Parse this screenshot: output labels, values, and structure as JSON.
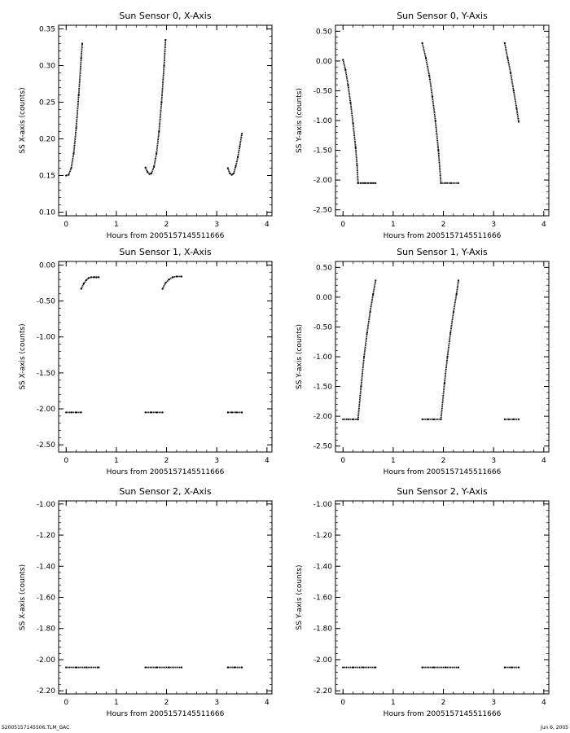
{
  "footer": {
    "left": "S2005157145506.TLM_GAC",
    "right": "Jun  6, 2005"
  },
  "chart_data": [
    {
      "type": "scatter",
      "title": "Sun Sensor 0, X-Axis",
      "xlabel": "Hours from 2005157145511666",
      "ylabel": "SS X-axis (counts)",
      "xlim": [
        -0.15,
        4.1
      ],
      "ylim": [
        0.095,
        0.355
      ],
      "xticks": [
        0,
        1,
        2,
        3,
        4
      ],
      "xtick_labels": [
        "0",
        "1",
        "2",
        "3",
        "4"
      ],
      "yticks": [
        0.1,
        0.15,
        0.2,
        0.25,
        0.3,
        0.35
      ],
      "ytick_labels": [
        "0.10",
        "0.15",
        "0.20",
        "0.25",
        "0.30",
        "0.35"
      ],
      "series": [
        {
          "x": [
            0.0,
            0.05,
            0.1,
            0.15,
            0.2,
            0.25,
            0.3,
            0.32
          ],
          "y": [
            0.15,
            0.151,
            0.16,
            0.18,
            0.215,
            0.26,
            0.31,
            0.33
          ]
        },
        {
          "x": [
            1.58,
            1.62,
            1.66,
            1.7,
            1.75,
            1.8,
            1.85,
            1.9,
            1.95,
            1.98
          ],
          "y": [
            0.161,
            0.155,
            0.152,
            0.153,
            0.162,
            0.18,
            0.21,
            0.25,
            0.3,
            0.335
          ]
        },
        {
          "x": [
            3.22,
            3.26,
            3.3,
            3.34,
            3.38,
            3.42,
            3.46,
            3.5
          ],
          "y": [
            0.16,
            0.153,
            0.151,
            0.153,
            0.163,
            0.175,
            0.19,
            0.207
          ]
        }
      ]
    },
    {
      "type": "scatter",
      "title": "Sun Sensor 0, Y-Axis",
      "xlabel": "Hours from 2005157145511666",
      "ylabel": "SS Y-axis (counts)",
      "xlim": [
        -0.15,
        4.1
      ],
      "ylim": [
        -2.6,
        0.6
      ],
      "xticks": [
        0,
        1,
        2,
        3,
        4
      ],
      "xtick_labels": [
        "0",
        "1",
        "2",
        "3",
        "4"
      ],
      "yticks": [
        -2.5,
        -2.0,
        -1.5,
        -1.0,
        -0.5,
        0.0,
        0.5
      ],
      "ytick_labels": [
        "-2.50",
        "-2.00",
        "-1.50",
        "-1.00",
        "-0.50",
        "0.00",
        "0.50"
      ],
      "series": [
        {
          "x": [
            0.0,
            0.05,
            0.1,
            0.15,
            0.2,
            0.25,
            0.28,
            0.3
          ],
          "y": [
            0.02,
            -0.15,
            -0.4,
            -0.7,
            -1.05,
            -1.45,
            -1.75,
            -2.05
          ]
        },
        {
          "x": [
            0.3,
            0.35,
            0.4,
            0.45,
            0.5,
            0.55,
            0.6,
            0.65
          ],
          "y": [
            -2.05,
            -2.05,
            -2.05,
            -2.05,
            -2.05,
            -2.05,
            -2.05,
            -2.05
          ]
        },
        {
          "x": [
            1.58,
            1.65,
            1.72,
            1.78,
            1.84,
            1.9,
            1.95
          ],
          "y": [
            0.3,
            0.05,
            -0.25,
            -0.6,
            -1.0,
            -1.5,
            -2.05
          ]
        },
        {
          "x": [
            1.95,
            2.05,
            2.15,
            2.3
          ],
          "y": [
            -2.05,
            -2.05,
            -2.05,
            -2.05
          ]
        },
        {
          "x": [
            3.22,
            3.28,
            3.34,
            3.4,
            3.46,
            3.5
          ],
          "y": [
            0.3,
            0.05,
            -0.2,
            -0.5,
            -0.8,
            -1.02
          ]
        }
      ]
    },
    {
      "type": "scatter",
      "title": "Sun Sensor 1, X-Axis",
      "xlabel": "Hours from 2005157145511666",
      "ylabel": "SS X-axis (counts)",
      "xlim": [
        -0.15,
        4.1
      ],
      "ylim": [
        -2.6,
        0.05
      ],
      "xticks": [
        0,
        1,
        2,
        3,
        4
      ],
      "xtick_labels": [
        "0",
        "1",
        "2",
        "3",
        "4"
      ],
      "yticks": [
        -2.5,
        -2.0,
        -1.5,
        -1.0,
        -0.5,
        0.0
      ],
      "ytick_labels": [
        "-2.50",
        "-2.00",
        "-1.50",
        "-1.00",
        "-0.50",
        "0.00"
      ],
      "series": [
        {
          "x": [
            0.0,
            0.1,
            0.2,
            0.3
          ],
          "y": [
            -2.05,
            -2.05,
            -2.05,
            -2.05
          ]
        },
        {
          "x": [
            0.3,
            0.35,
            0.4,
            0.45,
            0.5,
            0.55,
            0.6,
            0.65
          ],
          "y": [
            -0.33,
            -0.26,
            -0.21,
            -0.18,
            -0.17,
            -0.17,
            -0.17,
            -0.17
          ]
        },
        {
          "x": [
            1.58,
            1.7,
            1.8,
            1.92
          ],
          "y": [
            -2.05,
            -2.05,
            -2.05,
            -2.05
          ]
        },
        {
          "x": [
            1.92,
            1.98,
            2.05,
            2.12,
            2.2,
            2.3
          ],
          "y": [
            -0.33,
            -0.25,
            -0.2,
            -0.17,
            -0.16,
            -0.16
          ]
        },
        {
          "x": [
            3.22,
            3.3,
            3.4,
            3.5
          ],
          "y": [
            -2.05,
            -2.05,
            -2.05,
            -2.05
          ]
        }
      ]
    },
    {
      "type": "scatter",
      "title": "Sun Sensor 1, Y-Axis",
      "xlabel": "Hours from 2005157145511666",
      "ylabel": "SS Y-axis (counts)",
      "xlim": [
        -0.15,
        4.1
      ],
      "ylim": [
        -2.6,
        0.6
      ],
      "xticks": [
        0,
        1,
        2,
        3,
        4
      ],
      "xtick_labels": [
        "0",
        "1",
        "2",
        "3",
        "4"
      ],
      "yticks": [
        -2.5,
        -2.0,
        -1.5,
        -1.0,
        -0.5,
        0.0,
        0.5
      ],
      "ytick_labels": [
        "-2.50",
        "-2.00",
        "-1.50",
        "-1.00",
        "-0.50",
        "0.00",
        "0.50"
      ],
      "series": [
        {
          "x": [
            0.0,
            0.1,
            0.2,
            0.3
          ],
          "y": [
            -2.05,
            -2.05,
            -2.05,
            -2.05
          ]
        },
        {
          "x": [
            0.3,
            0.36,
            0.42,
            0.48,
            0.54,
            0.6,
            0.65
          ],
          "y": [
            -2.05,
            -1.5,
            -1.0,
            -0.6,
            -0.25,
            0.05,
            0.28
          ]
        },
        {
          "x": [
            1.58,
            1.7,
            1.8,
            1.95
          ],
          "y": [
            -2.05,
            -2.05,
            -2.05,
            -2.05
          ]
        },
        {
          "x": [
            1.95,
            2.02,
            2.08,
            2.14,
            2.2,
            2.26,
            2.3
          ],
          "y": [
            -2.05,
            -1.45,
            -1.0,
            -0.6,
            -0.25,
            0.05,
            0.28
          ]
        },
        {
          "x": [
            3.22,
            3.3,
            3.4,
            3.5
          ],
          "y": [
            -2.05,
            -2.05,
            -2.05,
            -2.05
          ]
        }
      ]
    },
    {
      "type": "scatter",
      "title": "Sun Sensor 2, X-Axis",
      "xlabel": "Hours from 2005157145511666",
      "ylabel": "SS X-axis (counts)",
      "xlim": [
        -0.15,
        4.1
      ],
      "ylim": [
        -2.22,
        -0.98
      ],
      "xticks": [
        0,
        1,
        2,
        3,
        4
      ],
      "xtick_labels": [
        "0",
        "1",
        "2",
        "3",
        "4"
      ],
      "yticks": [
        -2.2,
        -2.0,
        -1.8,
        -1.6,
        -1.4,
        -1.2,
        -1.0
      ],
      "ytick_labels": [
        "-2.20",
        "-2.00",
        "-1.80",
        "-1.60",
        "-1.40",
        "-1.20",
        "-1.00"
      ],
      "series": [
        {
          "x": [
            0.0,
            0.2,
            0.4,
            0.65
          ],
          "y": [
            -2.05,
            -2.05,
            -2.05,
            -2.05
          ]
        },
        {
          "x": [
            1.58,
            1.8,
            2.05,
            2.3
          ],
          "y": [
            -2.05,
            -2.05,
            -2.05,
            -2.05
          ]
        },
        {
          "x": [
            3.22,
            3.35,
            3.5
          ],
          "y": [
            -2.05,
            -2.05,
            -2.05
          ]
        }
      ]
    },
    {
      "type": "scatter",
      "title": "Sun Sensor 2, Y-Axis",
      "xlabel": "Hours from 2005157145511666",
      "ylabel": "SS Y-axis (counts)",
      "xlim": [
        -0.15,
        4.1
      ],
      "ylim": [
        -2.22,
        -0.98
      ],
      "xticks": [
        0,
        1,
        2,
        3,
        4
      ],
      "xtick_labels": [
        "0",
        "1",
        "2",
        "3",
        "4"
      ],
      "yticks": [
        -2.2,
        -2.0,
        -1.8,
        -1.6,
        -1.4,
        -1.2,
        -1.0
      ],
      "ytick_labels": [
        "-2.20",
        "-2.00",
        "-1.80",
        "-1.60",
        "-1.40",
        "-1.20",
        "-1.00"
      ],
      "series": [
        {
          "x": [
            0.0,
            0.2,
            0.4,
            0.65
          ],
          "y": [
            -2.05,
            -2.05,
            -2.05,
            -2.05
          ]
        },
        {
          "x": [
            1.58,
            1.8,
            2.05,
            2.3
          ],
          "y": [
            -2.05,
            -2.05,
            -2.05,
            -2.05
          ]
        },
        {
          "x": [
            3.22,
            3.35,
            3.5
          ],
          "y": [
            -2.05,
            -2.05,
            -2.05
          ]
        }
      ]
    }
  ]
}
